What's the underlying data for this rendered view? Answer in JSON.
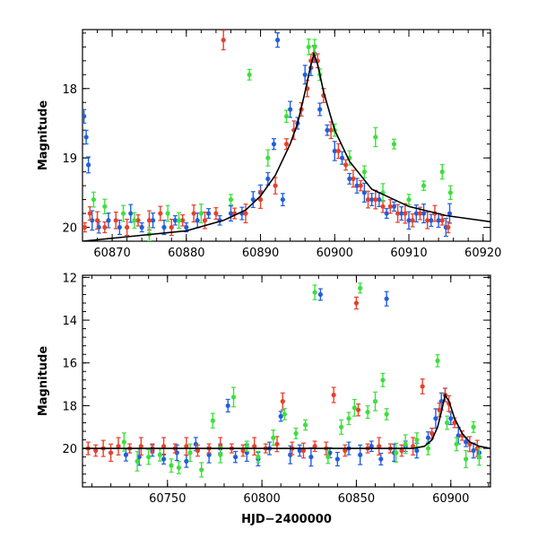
{
  "chart_data": [
    {
      "type": "scatter",
      "title": "",
      "xlabel": "",
      "ylabel": "Magnitude",
      "xlim": [
        60866,
        60921
      ],
      "ylim": [
        20.2,
        17.15
      ],
      "y_inverted": true,
      "xticks": [
        60870,
        60880,
        60890,
        60900,
        60910,
        60920
      ],
      "yticks": [
        18,
        19,
        20
      ],
      "grid": false,
      "series": [
        {
          "color": "#1f5fe0",
          "points": [
            [
              60866.2,
              18.4
            ],
            [
              60866.5,
              18.7
            ],
            [
              60866.8,
              19.1
            ],
            [
              60867.3,
              19.9
            ],
            [
              60868.2,
              20.0
            ],
            [
              60869.5,
              19.9
            ],
            [
              60871.0,
              20.0
            ],
            [
              60872.5,
              19.8
            ],
            [
              60874.0,
              20.0
            ],
            [
              60875.5,
              19.9
            ],
            [
              60877.0,
              20.0
            ],
            [
              60878.5,
              19.9
            ],
            [
              60880.0,
              20.0
            ],
            [
              60881.5,
              19.9
            ],
            [
              60883.0,
              19.8
            ],
            [
              60884.5,
              19.9
            ],
            [
              60886.0,
              19.8
            ],
            [
              60887.5,
              19.8
            ],
            [
              60889.0,
              19.6
            ],
            [
              60890.0,
              19.5
            ],
            [
              60891.0,
              19.3
            ],
            [
              60891.8,
              18.8
            ],
            [
              60892.3,
              17.3
            ],
            [
              60893.0,
              19.6
            ],
            [
              60894.0,
              18.3
            ],
            [
              60895.0,
              18.5
            ],
            [
              60896.0,
              17.8
            ],
            [
              60896.8,
              17.7
            ],
            [
              60897.3,
              17.5
            ],
            [
              60898.0,
              18.3
            ],
            [
              60899.0,
              18.6
            ],
            [
              60900.0,
              18.9
            ],
            [
              60901.0,
              19.0
            ],
            [
              60902.0,
              19.3
            ],
            [
              60903.0,
              19.4
            ],
            [
              60904.0,
              19.5
            ],
            [
              60905.0,
              19.6
            ],
            [
              60906.0,
              19.6
            ],
            [
              60907.0,
              19.8
            ],
            [
              60908.0,
              19.7
            ],
            [
              60909.0,
              19.8
            ],
            [
              60910.0,
              19.9
            ],
            [
              60911.0,
              19.8
            ],
            [
              60912.0,
              19.8
            ],
            [
              60913.0,
              19.9
            ],
            [
              60914.0,
              19.9
            ],
            [
              60915.0,
              20.0
            ],
            [
              60915.5,
              19.8
            ]
          ]
        },
        {
          "color": "#e8402a",
          "points": [
            [
              60866.3,
              20.0
            ],
            [
              60867.0,
              19.8
            ],
            [
              60868.0,
              19.9
            ],
            [
              60869.0,
              20.0
            ],
            [
              60870.5,
              19.9
            ],
            [
              60872.0,
              20.0
            ],
            [
              60873.5,
              19.9
            ],
            [
              60875.0,
              19.9
            ],
            [
              60876.5,
              19.8
            ],
            [
              60878.0,
              20.0
            ],
            [
              60879.5,
              19.9
            ],
            [
              60881.0,
              19.8
            ],
            [
              60882.5,
              19.9
            ],
            [
              60884.0,
              19.8
            ],
            [
              60885.0,
              17.3
            ],
            [
              60886.5,
              19.8
            ],
            [
              60888.0,
              19.8
            ],
            [
              60890.0,
              19.6
            ],
            [
              60892.0,
              19.4
            ],
            [
              60893.5,
              18.8
            ],
            [
              60894.5,
              18.6
            ],
            [
              60895.5,
              18.3
            ],
            [
              60896.3,
              18.0
            ],
            [
              60896.8,
              17.6
            ],
            [
              60897.2,
              17.5
            ],
            [
              60897.7,
              17.6
            ],
            [
              60898.5,
              18.1
            ],
            [
              60899.5,
              18.6
            ],
            [
              60900.5,
              18.9
            ],
            [
              60901.5,
              19.1
            ],
            [
              60902.5,
              19.3
            ],
            [
              60903.5,
              19.4
            ],
            [
              60904.5,
              19.6
            ],
            [
              60905.5,
              19.6
            ],
            [
              60906.5,
              19.7
            ],
            [
              60907.5,
              19.7
            ],
            [
              60908.5,
              19.8
            ],
            [
              60909.5,
              19.8
            ],
            [
              60910.5,
              19.9
            ],
            [
              60911.5,
              19.8
            ],
            [
              60912.5,
              19.9
            ],
            [
              60913.5,
              19.8
            ],
            [
              60914.5,
              19.9
            ],
            [
              60915.3,
              20.0
            ]
          ]
        },
        {
          "color": "#3ce03c",
          "points": [
            [
              60867.5,
              19.6
            ],
            [
              60869.0,
              19.7
            ],
            [
              60871.5,
              19.8
            ],
            [
              60873.0,
              19.9
            ],
            [
              60875.0,
              20.1
            ],
            [
              60877.5,
              19.8
            ],
            [
              60879.0,
              19.9
            ],
            [
              60882.0,
              19.8
            ],
            [
              60886.0,
              19.6
            ],
            [
              60888.5,
              17.8
            ],
            [
              60891.0,
              19.0
            ],
            [
              60893.5,
              18.4
            ],
            [
              60896.5,
              17.4
            ],
            [
              60897.3,
              17.4
            ],
            [
              60898.0,
              17.8
            ],
            [
              60900.0,
              18.6
            ],
            [
              60902.0,
              19.0
            ],
            [
              60904.0,
              19.2
            ],
            [
              60905.5,
              18.7
            ],
            [
              60906.5,
              19.5
            ],
            [
              60908.0,
              18.8
            ],
            [
              60910.0,
              19.6
            ],
            [
              60912.0,
              19.4
            ],
            [
              60914.5,
              19.2
            ],
            [
              60915.6,
              19.5
            ]
          ]
        }
      ],
      "model_curve": [
        [
          60866,
          20.2
        ],
        [
          60880,
          20.05
        ],
        [
          60885,
          19.9
        ],
        [
          60888,
          19.75
        ],
        [
          60890,
          19.55
        ],
        [
          60892,
          19.25
        ],
        [
          60894,
          18.8
        ],
        [
          60895,
          18.5
        ],
        [
          60896,
          18.05
        ],
        [
          60896.7,
          17.7
        ],
        [
          60897.2,
          17.5
        ],
        [
          60897.7,
          17.65
        ],
        [
          60898.5,
          18.05
        ],
        [
          60900,
          18.6
        ],
        [
          60902,
          19.05
        ],
        [
          60905,
          19.45
        ],
        [
          60910,
          19.7
        ],
        [
          60915,
          19.83
        ],
        [
          60921,
          19.92
        ]
      ]
    },
    {
      "type": "scatter",
      "title": "",
      "xlabel": "HJD−2400000",
      "ylabel": "Magnitude",
      "xlim": [
        60705,
        60921
      ],
      "ylim": [
        21.8,
        11.9
      ],
      "y_inverted": true,
      "xticks": [
        60750,
        60800,
        60850,
        60900
      ],
      "yticks": [
        12,
        14,
        16,
        18,
        20
      ],
      "grid": false,
      "series": [
        {
          "color": "#1f5fe0",
          "points": [
            [
              60728,
              20.3
            ],
            [
              60735,
              20.4
            ],
            [
              60742,
              20.1
            ],
            [
              60748,
              20.5
            ],
            [
              60755,
              20.2
            ],
            [
              60760,
              20.6
            ],
            [
              60765,
              19.8
            ],
            [
              60772,
              20.3
            ],
            [
              60778,
              20.0
            ],
            [
              60782,
              18.0
            ],
            [
              60786,
              20.4
            ],
            [
              60792,
              20.2
            ],
            [
              60798,
              20.5
            ],
            [
              60804,
              20.0
            ],
            [
              60810,
              18.5
            ],
            [
              60815,
              20.3
            ],
            [
              60820,
              20.1
            ],
            [
              60826,
              20.4
            ],
            [
              60831,
              12.8
            ],
            [
              60836,
              20.2
            ],
            [
              60840,
              20.5
            ],
            [
              60846,
              20.0
            ],
            [
              60852,
              20.3
            ],
            [
              60858,
              19.9
            ],
            [
              60863,
              20.5
            ],
            [
              60866,
              13.0
            ],
            [
              60870,
              20.2
            ],
            [
              60876,
              19.9
            ],
            [
              60882,
              20.1
            ],
            [
              60888,
              19.5
            ],
            [
              60892,
              18.6
            ],
            [
              60895,
              17.8
            ],
            [
              60897,
              17.5
            ],
            [
              60900,
              18.6
            ],
            [
              60904,
              19.4
            ],
            [
              60908,
              19.7
            ],
            [
              60912,
              20.1
            ],
            [
              60915,
              20.2
            ]
          ]
        },
        {
          "color": "#e8402a",
          "points": [
            [
              60708,
              20.0
            ],
            [
              60712,
              20.1
            ],
            [
              60716,
              20.0
            ],
            [
              60720,
              20.2
            ],
            [
              60724,
              19.9
            ],
            [
              60730,
              20.0
            ],
            [
              60736,
              19.9
            ],
            [
              60742,
              20.0
            ],
            [
              60748,
              19.9
            ],
            [
              60754,
              20.0
            ],
            [
              60760,
              19.9
            ],
            [
              60766,
              20.1
            ],
            [
              60772,
              20.0
            ],
            [
              60778,
              19.9
            ],
            [
              60784,
              20.0
            ],
            [
              60790,
              20.1
            ],
            [
              60796,
              19.9
            ],
            [
              60802,
              20.0
            ],
            [
              60808,
              19.8
            ],
            [
              60811,
              17.8
            ],
            [
              60816,
              20.0
            ],
            [
              60822,
              20.1
            ],
            [
              60828,
              19.9
            ],
            [
              60834,
              20.0
            ],
            [
              60838,
              17.5
            ],
            [
              60844,
              20.1
            ],
            [
              60850,
              13.2
            ],
            [
              60851,
              18.2
            ],
            [
              60856,
              20.0
            ],
            [
              60862,
              19.9
            ],
            [
              60868,
              20.0
            ],
            [
              60874,
              20.1
            ],
            [
              60880,
              19.9
            ],
            [
              60885,
              17.1
            ],
            [
              60890,
              19.3
            ],
            [
              60894,
              18.2
            ],
            [
              60897,
              17.5
            ],
            [
              60899,
              17.9
            ],
            [
              60902,
              18.8
            ],
            [
              60906,
              19.4
            ],
            [
              60910,
              19.8
            ],
            [
              60914,
              20.0
            ]
          ]
        },
        {
          "color": "#3ce03c",
          "points": [
            [
              60727,
              19.7
            ],
            [
              60734,
              20.6
            ],
            [
              60740,
              20.4
            ],
            [
              60746,
              20.3
            ],
            [
              60752,
              20.8
            ],
            [
              60756,
              20.9
            ],
            [
              60762,
              20.2
            ],
            [
              60768,
              21.0
            ],
            [
              60774,
              18.7
            ],
            [
              60778,
              20.3
            ],
            [
              60785,
              17.6
            ],
            [
              60792,
              19.9
            ],
            [
              60798,
              20.4
            ],
            [
              60806,
              19.5
            ],
            [
              60812,
              18.4
            ],
            [
              60818,
              19.3
            ],
            [
              60823,
              18.9
            ],
            [
              60828,
              12.7
            ],
            [
              60835,
              20.4
            ],
            [
              60842,
              19.0
            ],
            [
              60846,
              18.6
            ],
            [
              60849,
              18.1
            ],
            [
              60852,
              12.5
            ],
            [
              60856,
              18.3
            ],
            [
              60860,
              17.8
            ],
            [
              60864,
              16.8
            ],
            [
              60866,
              18.4
            ],
            [
              60871,
              20.2
            ],
            [
              60876,
              19.8
            ],
            [
              60882,
              19.6
            ],
            [
              60888,
              20.0
            ],
            [
              60893,
              15.9
            ],
            [
              60898,
              18.8
            ],
            [
              60903,
              19.8
            ],
            [
              60908,
              20.5
            ],
            [
              60912,
              19.0
            ],
            [
              60915,
              20.4
            ]
          ]
        }
      ],
      "model_curve": [
        [
          60705,
          20.0
        ],
        [
          60880,
          20.0
        ],
        [
          60886,
          19.9
        ],
        [
          60890,
          19.6
        ],
        [
          60893,
          19.0
        ],
        [
          60895,
          18.3
        ],
        [
          60897,
          17.5
        ],
        [
          60899,
          17.8
        ],
        [
          60902,
          18.6
        ],
        [
          60906,
          19.3
        ],
        [
          60910,
          19.7
        ],
        [
          60915,
          19.9
        ],
        [
          60921,
          20.0
        ]
      ]
    }
  ]
}
